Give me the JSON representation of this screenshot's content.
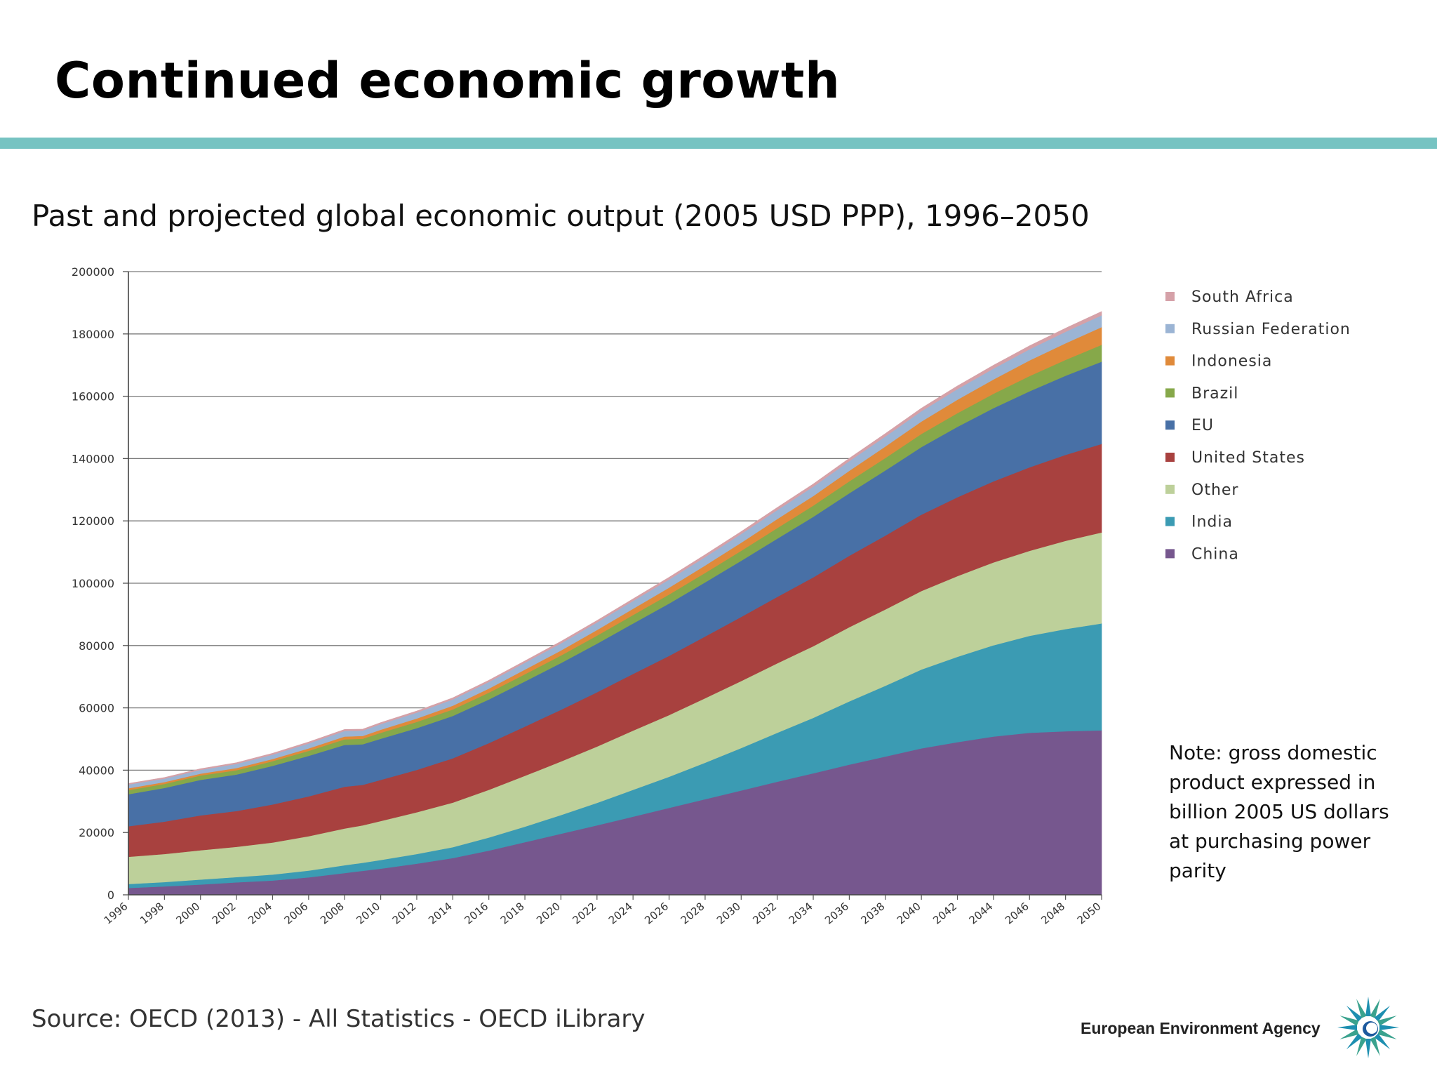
{
  "slide": {
    "title": "Continued economic growth",
    "subtitle": "Past and projected global economic output (2005 USD PPP), 1996–2050",
    "note": "Note: gross domestic product expressed in billion 2005 US dollars at purchasing power parity",
    "source": "Source: OECD (2013) - All Statistics - OECD iLibrary",
    "org_name": "European Environment Agency",
    "accent_color": "#76c3c2"
  },
  "chart_data": {
    "type": "area",
    "stacked": true,
    "title": "",
    "xlabel": "",
    "ylabel": "",
    "ylim": [
      0,
      200000
    ],
    "yticks": [
      0,
      20000,
      40000,
      60000,
      80000,
      100000,
      120000,
      140000,
      160000,
      180000,
      200000
    ],
    "x": [
      1996,
      1998,
      2000,
      2002,
      2004,
      2006,
      2008,
      2009,
      2010,
      2012,
      2014,
      2016,
      2018,
      2020,
      2022,
      2024,
      2026,
      2028,
      2030,
      2032,
      2034,
      2036,
      2038,
      2040,
      2042,
      2044,
      2046,
      2048,
      2050
    ],
    "xticks": [
      1996,
      1998,
      2000,
      2002,
      2004,
      2006,
      2008,
      2010,
      2012,
      2014,
      2016,
      2018,
      2020,
      2022,
      2024,
      2026,
      2028,
      2030,
      2032,
      2034,
      2036,
      2038,
      2040,
      2042,
      2044,
      2046,
      2048,
      2050
    ],
    "grid": true,
    "legend_position": "right",
    "series": [
      {
        "name": "China",
        "color": "#76578e",
        "values": [
          2200,
          2700,
          3300,
          4000,
          4600,
          5600,
          7000,
          7700,
          8400,
          10000,
          11800,
          14200,
          16900,
          19600,
          22300,
          25100,
          27900,
          30700,
          33500,
          36300,
          39000,
          41800,
          44400,
          47000,
          49000,
          50800,
          52000,
          52500,
          52800
        ]
      },
      {
        "name": "India",
        "color": "#3b9bb3",
        "values": [
          1300,
          1400,
          1600,
          1700,
          1900,
          2200,
          2500,
          2600,
          2800,
          3100,
          3500,
          4200,
          5000,
          6000,
          7200,
          8600,
          10000,
          11700,
          13600,
          15700,
          17800,
          20300,
          22700,
          25300,
          27400,
          29300,
          31100,
          32800,
          34300
        ]
      },
      {
        "name": "Other",
        "color": "#bdd09a",
        "values": [
          8700,
          9000,
          9400,
          9700,
          10300,
          11000,
          11800,
          12000,
          12500,
          13400,
          14300,
          15300,
          16300,
          17200,
          18100,
          19000,
          19800,
          20700,
          21500,
          22300,
          23000,
          23800,
          24500,
          25200,
          25900,
          26600,
          27300,
          28300,
          29200
        ]
      },
      {
        "name": "United States",
        "color": "#a8413f",
        "values": [
          9800,
          10400,
          11200,
          11500,
          12200,
          12800,
          13400,
          13000,
          13200,
          13600,
          14200,
          15000,
          15800,
          16600,
          17400,
          18200,
          19000,
          19800,
          20600,
          21300,
          22100,
          22900,
          23700,
          24500,
          25300,
          26000,
          26800,
          27600,
          28400
        ]
      },
      {
        "name": "EU",
        "color": "#4870a6",
        "values": [
          10300,
          10800,
          11400,
          11700,
          12400,
          13000,
          13400,
          13000,
          13200,
          13400,
          13600,
          14000,
          14500,
          15000,
          15600,
          16200,
          16800,
          17400,
          18000,
          18700,
          19400,
          20100,
          20900,
          21700,
          22600,
          23500,
          24400,
          25400,
          26400
        ]
      },
      {
        "name": "Brazil",
        "color": "#86a84a",
        "values": [
          1300,
          1300,
          1400,
          1400,
          1500,
          1600,
          1800,
          1800,
          1900,
          2000,
          2100,
          2200,
          2300,
          2400,
          2600,
          2700,
          2900,
          3000,
          3200,
          3400,
          3600,
          3800,
          4000,
          4200,
          4400,
          4600,
          4900,
          5100,
          5400
        ]
      },
      {
        "name": "Indonesia",
        "color": "#e08a3a",
        "values": [
          600,
          600,
          600,
          700,
          700,
          800,
          900,
          900,
          1000,
          1100,
          1200,
          1300,
          1500,
          1600,
          1800,
          2000,
          2200,
          2400,
          2600,
          2900,
          3100,
          3400,
          3700,
          4000,
          4300,
          4600,
          5000,
          5300,
          5700
        ]
      },
      {
        "name": "Russian Federation",
        "color": "#9bb4d4",
        "values": [
          1200,
          1100,
          1200,
          1300,
          1400,
          1600,
          1800,
          1700,
          1800,
          1900,
          2000,
          2100,
          2200,
          2300,
          2400,
          2500,
          2600,
          2700,
          2800,
          2900,
          3000,
          3100,
          3200,
          3300,
          3400,
          3500,
          3600,
          3700,
          3800
        ]
      },
      {
        "name": "South Africa",
        "color": "#d5a1a8",
        "values": [
          350,
          360,
          380,
          400,
          420,
          450,
          480,
          470,
          490,
          510,
          530,
          560,
          590,
          620,
          650,
          680,
          710,
          740,
          770,
          810,
          850,
          890,
          930,
          970,
          1010,
          1050,
          1100,
          1150,
          1200
        ]
      }
    ]
  }
}
